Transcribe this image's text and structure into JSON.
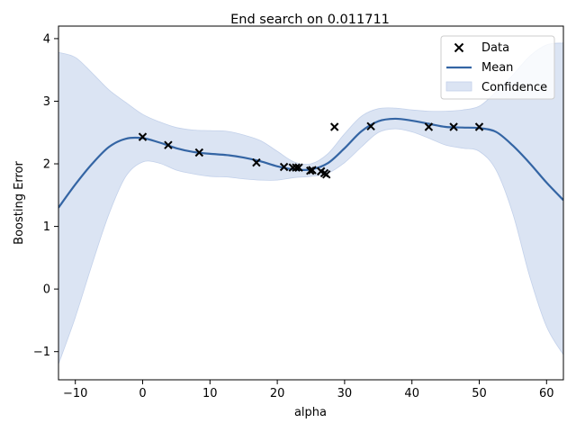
{
  "chart_data": {
    "type": "line",
    "title": "End search on 0.011711",
    "xlabel": "alpha",
    "ylabel": "Boosting Error",
    "xlim": [
      -12.5,
      62.5
    ],
    "ylim": [
      -1.45,
      4.2
    ],
    "xticks": [
      -10,
      0,
      10,
      20,
      30,
      40,
      50,
      60
    ],
    "yticks": [
      -1,
      0,
      1,
      2,
      3,
      4
    ],
    "grid": false,
    "legend_position": "upper right",
    "colors": {
      "mean": "#3465a4",
      "confidence": "#dbe4f3",
      "data": "#000000"
    },
    "legend": [
      {
        "key": "data",
        "label": "Data"
      },
      {
        "key": "mean",
        "label": "Mean"
      },
      {
        "key": "confidence",
        "label": "Confidence"
      }
    ],
    "series": [
      {
        "name": "Data",
        "kind": "scatter",
        "x": [
          0.0,
          3.8,
          8.4,
          16.9,
          21.0,
          22.3,
          22.8,
          23.2,
          24.9,
          25.2,
          26.5,
          27.0,
          27.3,
          28.5,
          33.9,
          42.5,
          46.2,
          50.0
        ],
        "y": [
          2.43,
          2.3,
          2.18,
          2.02,
          1.95,
          1.94,
          1.94,
          1.94,
          1.89,
          1.9,
          1.88,
          1.85,
          1.83,
          2.59,
          2.6,
          2.59,
          2.59,
          2.59
        ]
      },
      {
        "name": "Mean",
        "kind": "line",
        "x": [
          -12.5,
          -10,
          -7.5,
          -5,
          -2.5,
          0,
          2.5,
          5,
          7.5,
          10,
          12.5,
          15,
          17.5,
          20,
          22.5,
          25,
          27.5,
          30,
          32.5,
          35,
          37.5,
          40,
          42.5,
          45,
          47.5,
          50,
          52.5,
          55,
          57.5,
          60,
          62.5
        ],
        "y": [
          1.3,
          1.67,
          2.0,
          2.27,
          2.4,
          2.41,
          2.34,
          2.25,
          2.19,
          2.16,
          2.14,
          2.1,
          2.04,
          1.96,
          1.91,
          1.91,
          2.01,
          2.25,
          2.52,
          2.68,
          2.72,
          2.69,
          2.64,
          2.59,
          2.58,
          2.57,
          2.51,
          2.29,
          2.01,
          1.7,
          1.42
        ]
      },
      {
        "name": "Confidence",
        "kind": "band",
        "x": [
          -12.5,
          -10,
          -7.5,
          -5,
          -2.5,
          0,
          2.5,
          5,
          7.5,
          10,
          12.5,
          15,
          17.5,
          20,
          22.5,
          25,
          27.5,
          30,
          32.5,
          35,
          37.5,
          40,
          42.5,
          45,
          47.5,
          50,
          52.5,
          55,
          57.5,
          60,
          62.5
        ],
        "lower": [
          -1.2,
          -0.45,
          0.4,
          1.2,
          1.8,
          2.03,
          2.01,
          1.9,
          1.84,
          1.8,
          1.79,
          1.76,
          1.74,
          1.74,
          1.78,
          1.8,
          1.85,
          2.02,
          2.27,
          2.5,
          2.56,
          2.51,
          2.41,
          2.3,
          2.25,
          2.2,
          1.9,
          1.2,
          0.2,
          -0.6,
          -1.05
        ],
        "upper": [
          3.78,
          3.7,
          3.45,
          3.18,
          2.98,
          2.79,
          2.67,
          2.58,
          2.54,
          2.53,
          2.52,
          2.46,
          2.37,
          2.2,
          2.03,
          2.0,
          2.16,
          2.48,
          2.76,
          2.88,
          2.89,
          2.86,
          2.84,
          2.84,
          2.86,
          2.92,
          3.15,
          3.42,
          3.72,
          3.9,
          3.93
        ]
      }
    ]
  }
}
